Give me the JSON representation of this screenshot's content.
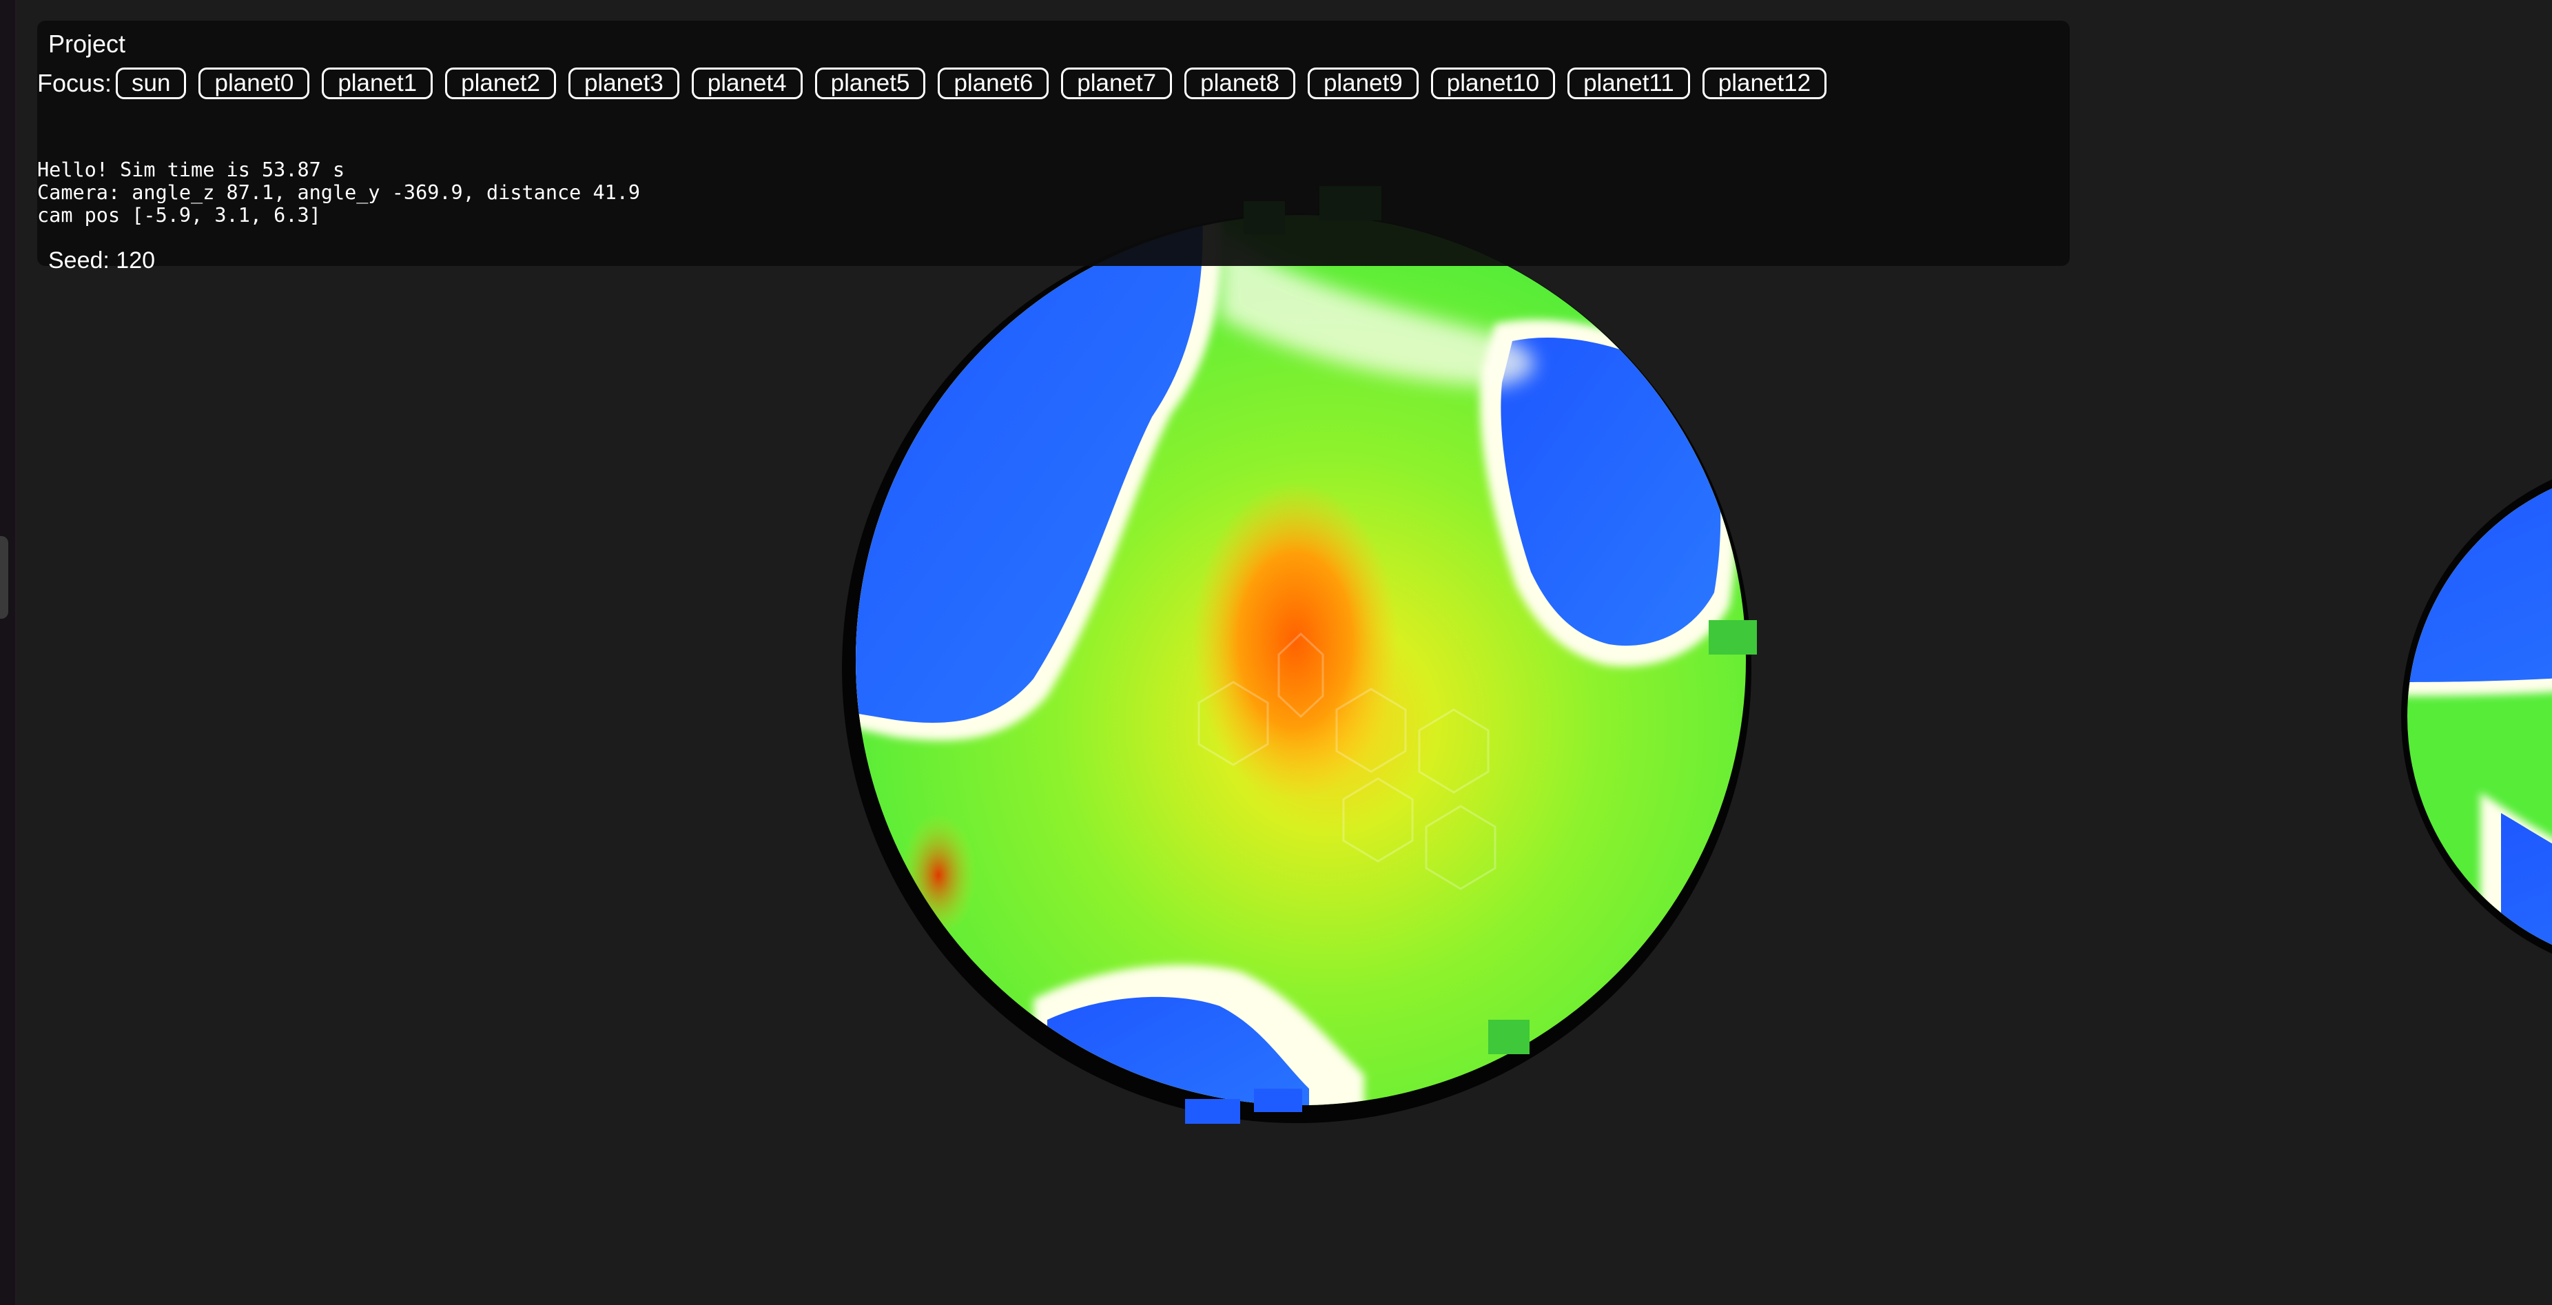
{
  "panel": {
    "title": "Project",
    "focus_label": "Focus:",
    "focus_options": [
      "sun",
      "planet0",
      "planet1",
      "planet2",
      "planet3",
      "planet4",
      "planet5",
      "planet6",
      "planet7",
      "planet8",
      "planet9",
      "planet10",
      "planet11",
      "planet12"
    ],
    "status_lines": [
      "Hello! Sim time is 53.87 s",
      "Camera: angle_z 87.1, angle_y -369.9, distance 41.9",
      "cam pos [-5.9, 3.1, 6.3]"
    ],
    "seed_text": "Seed: 120"
  },
  "scene": {
    "background_color": "#1c1c1c",
    "planet_colors": {
      "ocean": "#1a55ff",
      "shore": "#ffffe8",
      "land": "#66f23a",
      "highland": "#ffc21a",
      "peak": "#ff6a00"
    }
  }
}
